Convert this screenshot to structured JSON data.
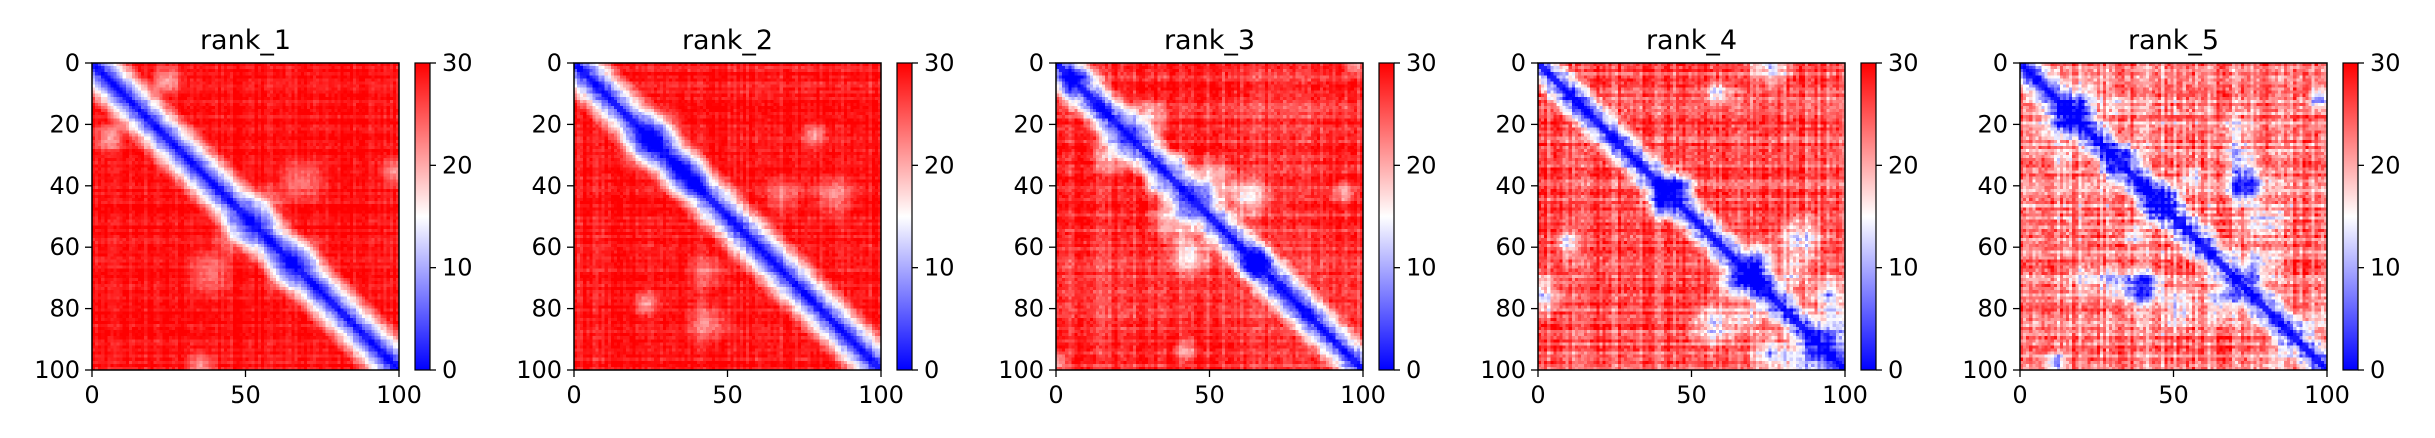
{
  "chart_data": [
    {
      "type": "heatmap",
      "title": "rank_1",
      "xlim": [
        0,
        100
      ],
      "ylim": [
        100,
        0
      ],
      "xticks": [
        "0",
        "50",
        "100"
      ],
      "yticks": [
        "0",
        "20",
        "40",
        "60",
        "80",
        "100"
      ],
      "colorbar": {
        "range": [
          0,
          30
        ],
        "ticks": [
          "0",
          "10",
          "20",
          "30"
        ],
        "cmap": "bwr"
      },
      "matrix_size": 100,
      "band_width": 8,
      "off_diagonal_level": 29,
      "noise": 1.5
    },
    {
      "type": "heatmap",
      "title": "rank_2",
      "xlim": [
        0,
        100
      ],
      "ylim": [
        100,
        0
      ],
      "xticks": [
        "0",
        "50",
        "100"
      ],
      "yticks": [
        "0",
        "20",
        "40",
        "60",
        "80",
        "100"
      ],
      "colorbar": {
        "range": [
          0,
          30
        ],
        "ticks": [
          "0",
          "10",
          "20",
          "30"
        ],
        "cmap": "bwr"
      },
      "matrix_size": 100,
      "band_width": 8,
      "off_diagonal_level": 28.5,
      "noise": 1.8
    },
    {
      "type": "heatmap",
      "title": "rank_3",
      "xlim": [
        0,
        100
      ],
      "ylim": [
        100,
        0
      ],
      "xticks": [
        "0",
        "50",
        "100"
      ],
      "yticks": [
        "0",
        "20",
        "40",
        "60",
        "80",
        "100"
      ],
      "colorbar": {
        "range": [
          0,
          30
        ],
        "ticks": [
          "0",
          "10",
          "20",
          "30"
        ],
        "cmap": "bwr"
      },
      "matrix_size": 100,
      "band_width": 7,
      "off_diagonal_level": 27,
      "noise": 2.5
    },
    {
      "type": "heatmap",
      "title": "rank_4",
      "xlim": [
        0,
        100
      ],
      "ylim": [
        100,
        0
      ],
      "xticks": [
        "0",
        "50",
        "100"
      ],
      "yticks": [
        "0",
        "20",
        "40",
        "60",
        "80",
        "100"
      ],
      "colorbar": {
        "range": [
          0,
          30
        ],
        "ticks": [
          "0",
          "10",
          "20",
          "30"
        ],
        "cmap": "bwr"
      },
      "matrix_size": 100,
      "band_width": 6,
      "off_diagonal_level": 25,
      "noise": 3.5
    },
    {
      "type": "heatmap",
      "title": "rank_5",
      "xlim": [
        0,
        100
      ],
      "ylim": [
        100,
        0
      ],
      "xticks": [
        "0",
        "50",
        "100"
      ],
      "yticks": [
        "0",
        "20",
        "40",
        "60",
        "80",
        "100"
      ],
      "colorbar": {
        "range": [
          0,
          30
        ],
        "ticks": [
          "0",
          "10",
          "20",
          "30"
        ],
        "cmap": "bwr"
      },
      "matrix_size": 100,
      "band_width": 6,
      "off_diagonal_level": 22,
      "noise": 4.5
    }
  ],
  "colors": {
    "low": "#0000ff",
    "mid": "#ffffff",
    "high": "#ff0000",
    "axis": "#000000"
  }
}
